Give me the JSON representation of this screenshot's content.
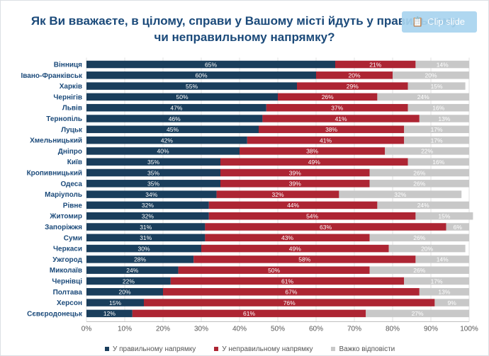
{
  "title": "Як Ви вважаєте, в цілому, справи у Вашому місті йдуть у правильному чи неправильному напрямку?",
  "clip_button": {
    "label": "Clip slide",
    "icon": "clipboard-icon"
  },
  "colors": {
    "right": "#1a3e5c",
    "wrong": "#ad2533",
    "hard": "#c8c8c8"
  },
  "chart_data": {
    "type": "bar",
    "orientation": "horizontal-stacked",
    "title": "Як Ви вважаєте, в цілому, справи у Вашому місті йдуть у правильному чи неправильному напрямку?",
    "categories": [
      "Вінниця",
      "Івано-Франківськ",
      "Харків",
      "Чернігів",
      "Львів",
      "Тернопіль",
      "Луцьк",
      "Хмельницький",
      "Дніпро",
      "Київ",
      "Кропивницький",
      "Одеса",
      "Маріуполь",
      "Рівне",
      "Житомир",
      "Запоріжжя",
      "Суми",
      "Черкаси",
      "Ужгород",
      "Миколаїв",
      "Чернівці",
      "Полтава",
      "Херсон",
      "Сєвєродонецьк"
    ],
    "series": [
      {
        "name": "У правильному напрямку",
        "values": [
          65,
          60,
          55,
          50,
          47,
          46,
          45,
          42,
          40,
          35,
          35,
          35,
          34,
          32,
          32,
          31,
          31,
          30,
          28,
          24,
          22,
          20,
          15,
          12
        ]
      },
      {
        "name": "У неправильному напрямку",
        "values": [
          21,
          20,
          29,
          26,
          37,
          41,
          38,
          41,
          38,
          49,
          39,
          39,
          32,
          44,
          54,
          63,
          43,
          49,
          58,
          50,
          61,
          67,
          76,
          61
        ]
      },
      {
        "name": "Важко відповісти",
        "values": [
          14,
          20,
          15,
          24,
          16,
          13,
          17,
          17,
          22,
          16,
          26,
          26,
          32,
          24,
          15,
          6,
          26,
          20,
          14,
          26,
          17,
          13,
          9,
          27
        ]
      }
    ],
    "x_ticks": [
      "0%",
      "10%",
      "20%",
      "30%",
      "40%",
      "50%",
      "60%",
      "70%",
      "80%",
      "90%",
      "100%"
    ],
    "xlim": [
      0,
      100
    ],
    "value_suffix": "%",
    "grid": true,
    "legend_position": "bottom"
  }
}
